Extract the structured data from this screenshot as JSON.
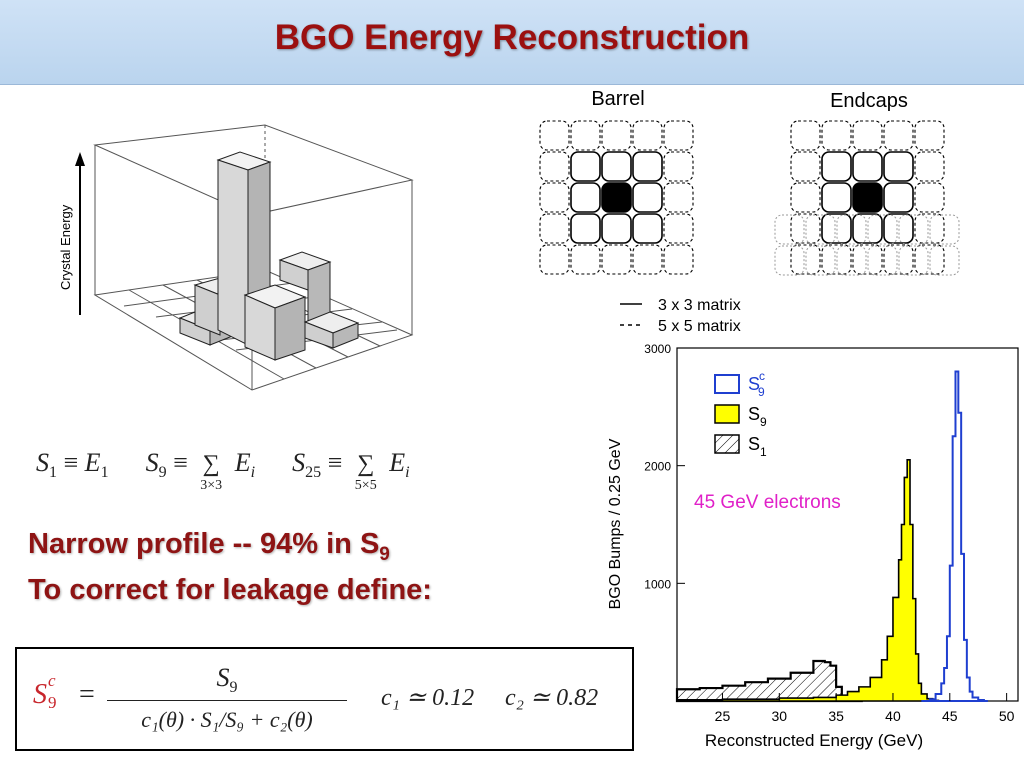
{
  "title": "BGO Energy Reconstruction",
  "lego": {
    "axis_label": "Crystal Energy"
  },
  "definitions": {
    "s1": "S",
    "s1_sub": "1",
    "equiv": "≡",
    "e1": "E",
    "e1_sub": "1",
    "s9": "S",
    "s9_sub": "9",
    "sum": "∑",
    "sum9_under": "3×3",
    "ei": "E",
    "ei_sub": "i",
    "s25": "S",
    "s25_sub": "25",
    "sum25_under": "5×5"
  },
  "text_lines": {
    "line1_main": "Narrow profile -- 94% in S",
    "line1_sub": "9",
    "line2": "To correct for leakage define:"
  },
  "correction_formula": {
    "lhs": "S",
    "lhs_sub": "9",
    "lhs_sup": "c",
    "eq": "=",
    "numerator": "S",
    "numerator_sub": "9",
    "denominator": "c₁(θ) · S₁/S₉ + c₂(θ)",
    "c1": "c₁ ≃ 0.12",
    "c2": "c₂ ≃ 0.82"
  },
  "matrices": {
    "barrel_label": "Barrel",
    "endcaps_label": "Endcaps",
    "legend_solid": "3 x 3 matrix",
    "legend_dashed": "5 x 5 matrix"
  },
  "chart_data": {
    "type": "area",
    "xlabel": "Reconstructed Energy (GeV)",
    "ylabel": "BGO Bumps / 0.25 GeV",
    "xlim": [
      21,
      51
    ],
    "ylim": [
      0,
      3000
    ],
    "x_ticks": [
      25,
      30,
      35,
      40,
      45,
      50
    ],
    "y_ticks": [
      1000,
      2000,
      3000
    ],
    "annotation": "45 GeV electrons",
    "legend_position": "top-left",
    "colors": {
      "s9c": "#1f3fd0",
      "s9": "#ffff00",
      "s1": "#000000",
      "annotation": "#e020c8"
    },
    "series": [
      {
        "name": "S9c",
        "name_main": "S",
        "name_sub": "9",
        "name_sup": "c",
        "style": "blue-outline",
        "x": [
          42.5,
          43.25,
          43.75,
          44.25,
          44.5,
          44.75,
          45.0,
          45.25,
          45.5,
          45.75,
          46.0,
          46.25,
          46.5,
          46.75,
          47.0,
          47.5,
          48.0
        ],
        "y": [
          0,
          15,
          60,
          150,
          280,
          550,
          1150,
          2250,
          2800,
          2450,
          1250,
          520,
          200,
          80,
          30,
          8,
          0
        ]
      },
      {
        "name": "S9",
        "name_main": "S",
        "name_sub": "9",
        "style": "yellow-fill",
        "x": [
          21,
          25,
          30,
          33,
          35,
          36,
          37,
          38,
          39,
          39.5,
          40.0,
          40.5,
          40.75,
          41.0,
          41.25,
          41.5,
          41.75,
          42.0,
          42.25,
          42.5,
          43.0,
          43.5,
          44.0
        ],
        "y": [
          10,
          15,
          25,
          30,
          50,
          80,
          120,
          200,
          350,
          550,
          880,
          1200,
          1500,
          1900,
          2050,
          1500,
          870,
          400,
          150,
          60,
          20,
          5,
          0
        ]
      },
      {
        "name": "S1",
        "name_main": "S",
        "name_sub": "1",
        "style": "hatched",
        "x": [
          21,
          23,
          25,
          27,
          29,
          31,
          33,
          34,
          34.5,
          35,
          35.5,
          36,
          37
        ],
        "y": [
          100,
          110,
          130,
          160,
          190,
          240,
          340,
          330,
          300,
          120,
          30,
          10,
          0
        ]
      }
    ]
  }
}
